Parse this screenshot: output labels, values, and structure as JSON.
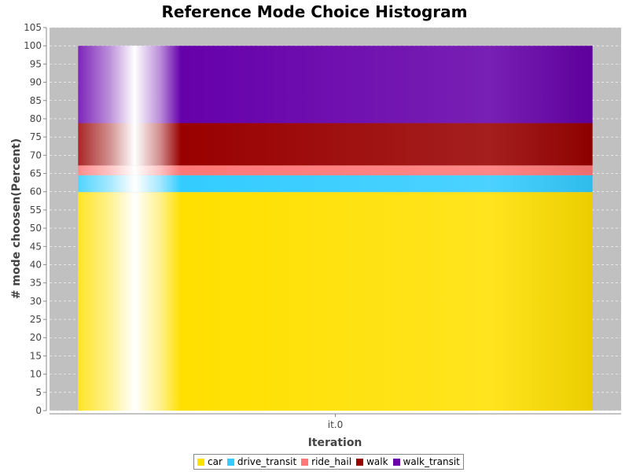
{
  "chart_data": {
    "type": "bar",
    "stacked": true,
    "title": "Reference Mode Choice Histogram",
    "xlabel": "Iteration",
    "ylabel": "# mode choosen(Percent)",
    "categories": [
      "it.0"
    ],
    "ylim": [
      0,
      105
    ],
    "yticks": [
      0,
      5,
      10,
      15,
      20,
      25,
      30,
      35,
      40,
      45,
      50,
      55,
      60,
      65,
      70,
      75,
      80,
      85,
      90,
      95,
      100,
      105
    ],
    "grid": true,
    "legend_position": "bottom",
    "series": [
      {
        "name": "car",
        "values": [
          59.9
        ],
        "color": "#ffe000"
      },
      {
        "name": "drive_transit",
        "values": [
          4.6
        ],
        "color": "#33ccff"
      },
      {
        "name": "ride_hail",
        "values": [
          2.7
        ],
        "color": "#ff7777"
      },
      {
        "name": "walk",
        "values": [
          11.6
        ],
        "color": "#990000"
      },
      {
        "name": "walk_transit",
        "values": [
          21.2
        ],
        "color": "#6600aa"
      }
    ]
  },
  "colors": {
    "plot_background": "#c0c0c0",
    "gridline": "#ffffff"
  }
}
